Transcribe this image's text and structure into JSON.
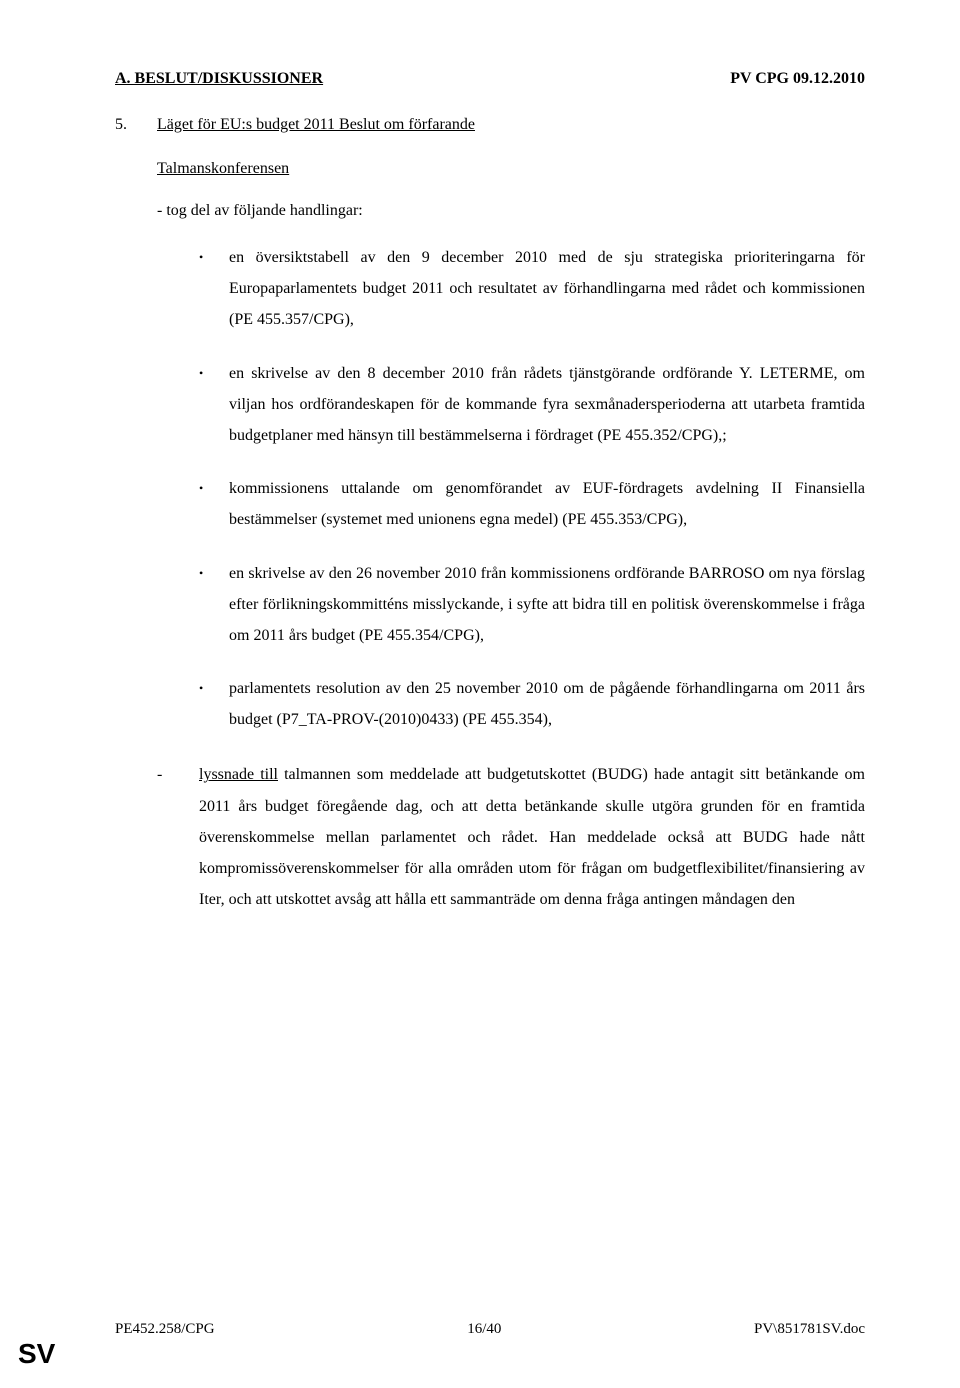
{
  "header": {
    "left": "A.    BESLUT/DISKUSSIONER",
    "right": "PV CPG 09.12.2010"
  },
  "item": {
    "number": "5.",
    "title": "Läget för EU:s budget 2011 Beslut om förfarande"
  },
  "subhead": "Talmanskonferensen",
  "dash_intro": "-      tog del av följande handlingar:",
  "bullets": [
    "en översiktstabell av den 9 december 2010 med de sju strategiska prioriteringarna för Europaparlamentets budget 2011 och resultatet av förhandlingarna med rådet och kommissionen (PE 455.357/CPG),",
    "en skrivelse av den 8 december 2010 från rådets tjänstgörande ordförande Y. LETERME, om viljan hos ordförandeskapen för de kommande fyra sexmånadersperioderna att utarbeta framtida budgetplaner med hänsyn till bestämmelserna i fördraget (PE 455.352/CPG),;",
    "kommissionens uttalande om genomförandet av EUF-fördragets avdelning II Finansiella bestämmelser (systemet med unionens egna medel) (PE 455.353/CPG),",
    "en skrivelse av den 26 november 2010 från kommissionens ordförande BARROSO om nya förslag efter förlikningskommitténs misslyckande, i syfte att bidra till en politisk överenskommelse i fråga om 2011 års budget (PE 455.354/CPG),",
    "parlamentets resolution av den 25 november 2010 om de pågående förhandlingarna om 2011 års budget (P7_TA-PROV-(2010)0433) (PE 455.354),"
  ],
  "final": {
    "dash": "-",
    "lead": "lyssnade till",
    "rest": " talmannen som meddelade att budgetutskottet (BUDG) hade antagit sitt betänkande om 2011 års budget föregående dag, och att detta betänkande skulle utgöra grunden för en framtida överenskommelse mellan parlamentet och rådet. Han meddelade också att BUDG hade nått kompromissöverenskommelser för alla områden utom för frågan om budgetflexibilitet/finansiering av Iter, och att utskottet avsåg att hålla ett sammanträde om denna fråga antingen måndagen den"
  },
  "footer": {
    "left": "PE452.258/CPG",
    "center": "16/40",
    "right": "PV\\851781SV.doc"
  },
  "lang": "SV"
}
